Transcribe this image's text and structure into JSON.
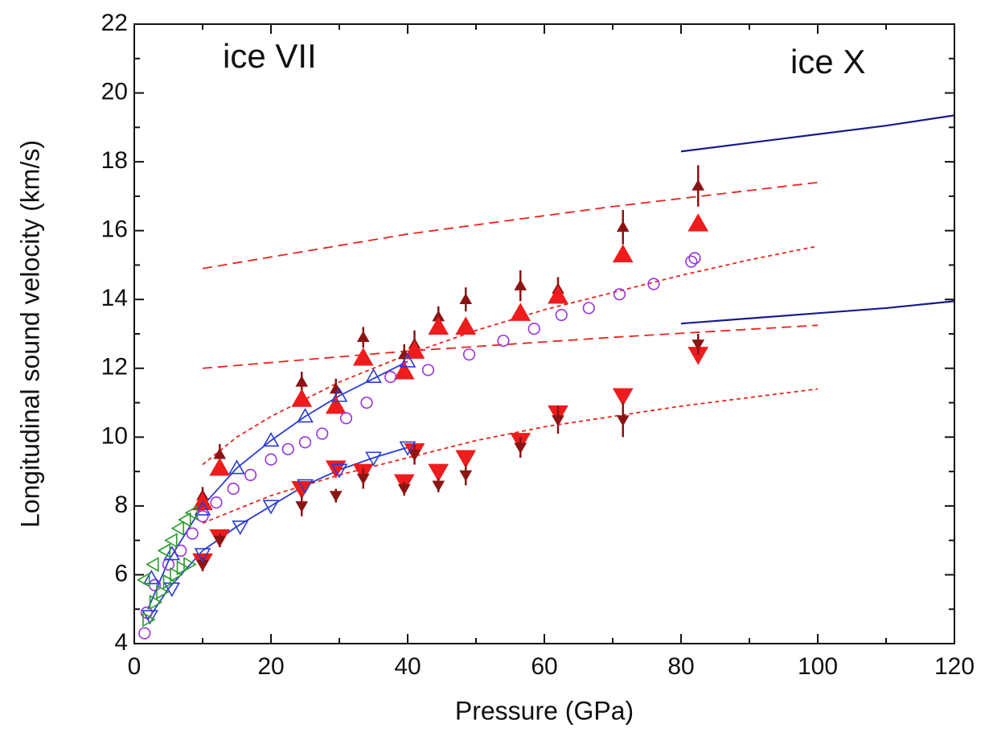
{
  "chart_data": {
    "type": "scatter",
    "xlabel": "Pressure (GPa)",
    "ylabel": "Longitudinal sound velocity (km/s)",
    "annotations": [
      "ice VII",
      "ice X"
    ],
    "xlim": [
      0,
      120
    ],
    "ylim": [
      4,
      22
    ],
    "xticks": [
      0,
      20,
      40,
      60,
      80,
      100,
      120
    ],
    "yticks": [
      4,
      6,
      8,
      10,
      12,
      14,
      16,
      18,
      20,
      22
    ],
    "xminorticks": [
      10,
      30,
      50,
      70,
      90,
      110
    ],
    "yminorticks": [
      5,
      7,
      9,
      11,
      13,
      15,
      17,
      19,
      21
    ],
    "series": [
      {
        "color": "#1a1a8c",
        "line": "solid",
        "x": [
          80,
          90,
          100,
          110,
          120
        ],
        "values": [
          18.3,
          18.55,
          18.8,
          19.05,
          19.35
        ]
      },
      {
        "color": "#1a1a8c",
        "line": "solid",
        "x": [
          80,
          90,
          100,
          110,
          120
        ],
        "values": [
          13.3,
          13.45,
          13.6,
          13.75,
          13.95
        ]
      },
      {
        "color": "#e8231d",
        "line": "dashed",
        "x": [
          10,
          40,
          70,
          100
        ],
        "values": [
          14.9,
          15.9,
          16.7,
          17.4
        ]
      },
      {
        "color": "#e8231d",
        "line": "dashed",
        "x": [
          10,
          40,
          70,
          100
        ],
        "values": [
          12.0,
          12.5,
          12.9,
          13.25
        ]
      },
      {
        "color": "#e8231d",
        "line": "dotted",
        "x": [
          10,
          15,
          20,
          30,
          40,
          50,
          60,
          70,
          80,
          90,
          100
        ],
        "values": [
          9.2,
          10.0,
          10.6,
          11.6,
          12.4,
          13.1,
          13.7,
          14.2,
          14.7,
          15.15,
          15.55
        ]
      },
      {
        "color": "#e8231d",
        "line": "dotted",
        "x": [
          10,
          20,
          30,
          40,
          50,
          60,
          70,
          80,
          90,
          100
        ],
        "values": [
          7.5,
          8.3,
          8.9,
          9.4,
          9.9,
          10.3,
          10.6,
          10.9,
          11.15,
          11.4
        ]
      },
      {
        "color": "#2a3cd6",
        "line": "solid",
        "x": [
          2,
          5,
          10,
          15,
          20,
          25,
          30,
          35,
          40
        ],
        "values": [
          5.0,
          6.4,
          8.0,
          9.1,
          9.9,
          10.6,
          11.2,
          11.7,
          12.2
        ]
      },
      {
        "color": "#2a3cd6",
        "line": "solid",
        "x": [
          2,
          5,
          10,
          15,
          20,
          25,
          30,
          35,
          40
        ],
        "values": [
          4.7,
          5.6,
          6.7,
          7.4,
          8.0,
          8.6,
          9.05,
          9.4,
          9.7
        ]
      },
      {
        "color": "#8b1414",
        "marker": "up",
        "fill": true,
        "size": 7,
        "x": [
          10,
          12.5,
          24.5,
          29.5,
          33.5,
          39.5,
          41,
          44.5,
          48.5,
          56.5,
          62,
          71.5,
          82.5
        ],
        "values": [
          8.3,
          9.5,
          11.6,
          11.4,
          12.9,
          12.4,
          12.7,
          13.5,
          14.0,
          14.4,
          14.3,
          16.1,
          17.3
        ],
        "errors": [
          0.25,
          0.3,
          0.3,
          0.3,
          0.3,
          0.3,
          0.4,
          0.3,
          0.35,
          0.45,
          0.35,
          0.5,
          0.6
        ]
      },
      {
        "color": "#ee1c1c",
        "marker": "up",
        "fill": true,
        "size": 12,
        "x": [
          10,
          12.5,
          24.5,
          29.5,
          33.5,
          39.5,
          41,
          44.5,
          48.5,
          56.5,
          62,
          71.5,
          82.5
        ],
        "values": [
          8.1,
          9.1,
          11.1,
          10.9,
          12.3,
          11.9,
          12.5,
          13.2,
          13.2,
          13.6,
          14.1,
          15.3,
          16.2
        ]
      },
      {
        "color": "#ee1c1c",
        "marker": "down",
        "fill": true,
        "size": 12,
        "x": [
          10,
          12.5,
          24.5,
          29.5,
          33.5,
          39.5,
          41,
          44.5,
          48.5,
          56.5,
          62,
          71.5,
          82.5
        ],
        "values": [
          6.4,
          7.1,
          8.5,
          9.1,
          9.0,
          8.7,
          9.6,
          9.0,
          9.4,
          9.9,
          10.7,
          11.2,
          12.4
        ]
      },
      {
        "color": "#8b1414",
        "marker": "down",
        "fill": true,
        "size": 7,
        "x": [
          10,
          12.5,
          24.5,
          29.5,
          33.5,
          39.5,
          41,
          44.5,
          48.5,
          56.5,
          62,
          71.5,
          82.5
        ],
        "values": [
          6.3,
          7.0,
          8.0,
          8.3,
          8.8,
          8.5,
          9.5,
          8.6,
          8.9,
          9.7,
          10.5,
          10.5,
          12.7
        ],
        "errors": [
          0.2,
          0.2,
          0.3,
          0.2,
          0.3,
          0.2,
          0.3,
          0.2,
          0.3,
          0.3,
          0.4,
          0.5,
          0.3
        ]
      },
      {
        "color": "#9933dd",
        "marker": "circle",
        "fill": false,
        "size": 8,
        "x": [
          1.5,
          1.8,
          3,
          5,
          6.8,
          8.5,
          10,
          12,
          14.5,
          17,
          20,
          22.5,
          25,
          27.5,
          31,
          34,
          37.5,
          43,
          49,
          54,
          58.5,
          62.5,
          66.5,
          71,
          76,
          81.5,
          82
        ],
        "values": [
          4.3,
          4.9,
          5.7,
          6.3,
          6.7,
          7.2,
          7.7,
          8.1,
          8.5,
          8.9,
          9.35,
          9.65,
          9.85,
          10.1,
          10.55,
          11.0,
          11.75,
          11.95,
          12.4,
          12.8,
          13.15,
          13.55,
          13.75,
          14.15,
          14.45,
          15.1,
          15.2
        ]
      },
      {
        "color": "#2a3cd6",
        "marker": "up",
        "fill": false,
        "size": 9,
        "x": [
          2.5,
          5.5,
          10,
          15,
          20,
          25,
          30,
          35,
          40
        ],
        "values": [
          5.9,
          6.6,
          7.9,
          9.1,
          9.9,
          10.6,
          11.2,
          11.75,
          12.2
        ]
      },
      {
        "color": "#2a3cd6",
        "marker": "down",
        "fill": false,
        "size": 9,
        "x": [
          2.3,
          5.5,
          10,
          15.5,
          20,
          25,
          30,
          35,
          40
        ],
        "values": [
          4.8,
          5.6,
          6.6,
          7.4,
          8.0,
          8.6,
          9.05,
          9.4,
          9.7
        ]
      },
      {
        "color": "#2a9a2a",
        "marker": "left",
        "fill": false,
        "size": 8,
        "x": [
          1.5,
          2.8,
          4.5,
          5.5,
          6.5,
          7.5,
          8.5
        ],
        "values": [
          5.85,
          6.3,
          6.7,
          7.0,
          7.35,
          7.6,
          7.8
        ]
      },
      {
        "color": "#2a9a2a",
        "marker": "right",
        "fill": false,
        "size": 8,
        "x": [
          2,
          3,
          4,
          5,
          6,
          7,
          8
        ],
        "values": [
          4.7,
          5.2,
          5.5,
          5.8,
          6.0,
          6.2,
          6.3
        ]
      }
    ]
  }
}
